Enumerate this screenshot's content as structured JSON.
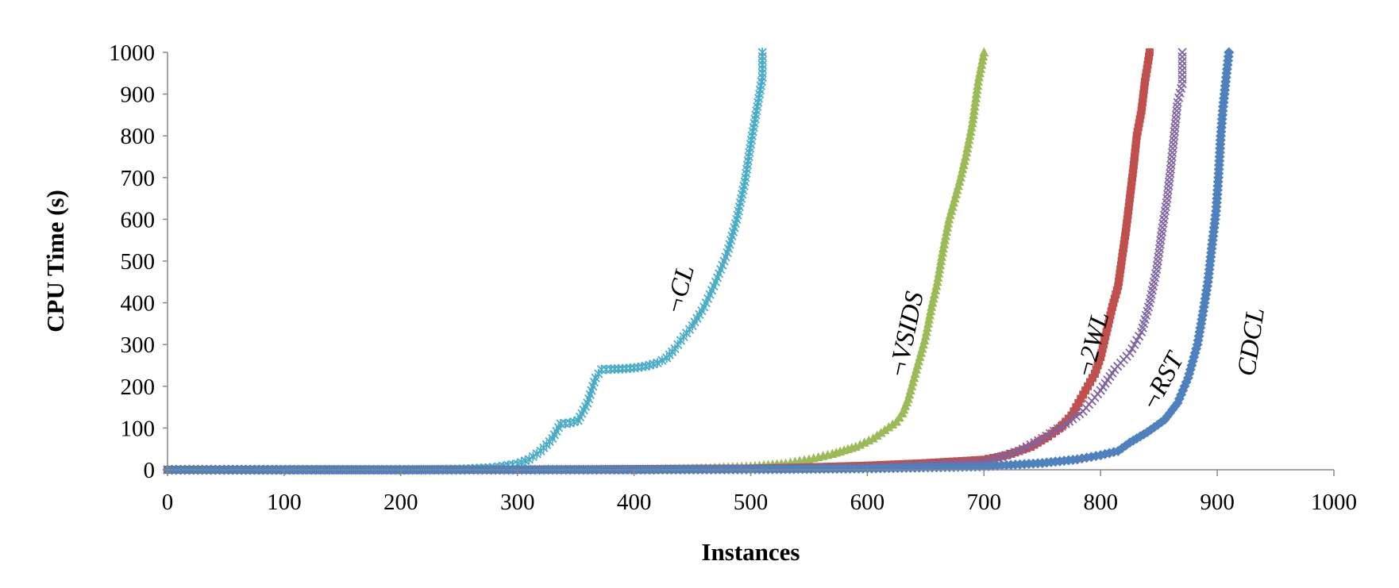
{
  "chart_data": {
    "type": "scatter",
    "title": "",
    "xlabel": "Instances",
    "ylabel": "CPU Time (s)",
    "xlim": [
      0,
      1000
    ],
    "ylim": [
      0,
      1000
    ],
    "x_ticks": [
      "0",
      "100",
      "200",
      "300",
      "400",
      "500",
      "600",
      "700",
      "800",
      "900",
      "1000"
    ],
    "y_ticks": [
      "0",
      "100",
      "200",
      "300",
      "400",
      "500",
      "600",
      "700",
      "800",
      "900",
      "1000"
    ],
    "grid": false,
    "legend": "none",
    "series": [
      {
        "name": "¬CL",
        "color": "#4BACC6",
        "marker": "star",
        "points": [
          [
            0,
            0
          ],
          [
            100,
            0
          ],
          [
            200,
            0
          ],
          [
            250,
            1
          ],
          [
            280,
            5
          ],
          [
            300,
            14
          ],
          [
            310,
            25
          ],
          [
            320,
            45
          ],
          [
            330,
            75
          ],
          [
            337,
            110
          ],
          [
            345,
            112
          ],
          [
            352,
            118
          ],
          [
            360,
            160
          ],
          [
            367,
            220
          ],
          [
            372,
            240
          ],
          [
            380,
            241
          ],
          [
            390,
            242
          ],
          [
            400,
            244
          ],
          [
            410,
            248
          ],
          [
            420,
            256
          ],
          [
            428,
            268
          ],
          [
            435,
            290
          ],
          [
            440,
            310
          ],
          [
            450,
            345
          ],
          [
            460,
            390
          ],
          [
            470,
            450
          ],
          [
            480,
            520
          ],
          [
            488,
            600
          ],
          [
            495,
            690
          ],
          [
            500,
            780
          ],
          [
            505,
            860
          ],
          [
            510,
            940
          ],
          [
            510,
            1000
          ]
        ]
      },
      {
        "name": "¬VSIDS",
        "color": "#9BBB59",
        "marker": "triangle",
        "points": [
          [
            0,
            0
          ],
          [
            200,
            0
          ],
          [
            400,
            1
          ],
          [
            450,
            3
          ],
          [
            500,
            8
          ],
          [
            530,
            15
          ],
          [
            550,
            25
          ],
          [
            570,
            38
          ],
          [
            590,
            55
          ],
          [
            605,
            75
          ],
          [
            615,
            95
          ],
          [
            625,
            115
          ],
          [
            630,
            135
          ],
          [
            635,
            170
          ],
          [
            640,
            220
          ],
          [
            645,
            270
          ],
          [
            650,
            320
          ],
          [
            655,
            390
          ],
          [
            660,
            450
          ],
          [
            665,
            530
          ],
          [
            670,
            600
          ],
          [
            675,
            650
          ],
          [
            680,
            700
          ],
          [
            685,
            760
          ],
          [
            690,
            830
          ],
          [
            695,
            930
          ],
          [
            700,
            1000
          ]
        ]
      },
      {
        "name": "¬2WL",
        "color": "#C0504D",
        "marker": "square",
        "points": [
          [
            0,
            0
          ],
          [
            300,
            0
          ],
          [
            500,
            3
          ],
          [
            550,
            6
          ],
          [
            600,
            10
          ],
          [
            650,
            16
          ],
          [
            700,
            24
          ],
          [
            720,
            35
          ],
          [
            740,
            55
          ],
          [
            755,
            80
          ],
          [
            765,
            100
          ],
          [
            775,
            130
          ],
          [
            785,
            180
          ],
          [
            795,
            230
          ],
          [
            800,
            270
          ],
          [
            805,
            330
          ],
          [
            810,
            390
          ],
          [
            815,
            440
          ],
          [
            818,
            500
          ],
          [
            822,
            580
          ],
          [
            825,
            650
          ],
          [
            828,
            720
          ],
          [
            831,
            800
          ],
          [
            835,
            860
          ],
          [
            838,
            930
          ],
          [
            842,
            1000
          ]
        ]
      },
      {
        "name": "¬RST",
        "color": "#8064A2",
        "marker": "x",
        "points": [
          [
            0,
            0
          ],
          [
            400,
            0
          ],
          [
            600,
            4
          ],
          [
            700,
            18
          ],
          [
            730,
            45
          ],
          [
            750,
            75
          ],
          [
            770,
            110
          ],
          [
            785,
            140
          ],
          [
            800,
            190
          ],
          [
            812,
            240
          ],
          [
            825,
            280
          ],
          [
            835,
            330
          ],
          [
            842,
            400
          ],
          [
            848,
            480
          ],
          [
            853,
            580
          ],
          [
            857,
            650
          ],
          [
            860,
            720
          ],
          [
            863,
            800
          ],
          [
            866,
            880
          ],
          [
            870,
            925
          ],
          [
            870,
            1000
          ]
        ]
      },
      {
        "name": "CDCL",
        "color": "#4F81BD",
        "marker": "diamond",
        "points": [
          [
            0,
            0
          ],
          [
            300,
            0
          ],
          [
            500,
            1
          ],
          [
            600,
            3
          ],
          [
            700,
            8
          ],
          [
            750,
            16
          ],
          [
            780,
            25
          ],
          [
            800,
            35
          ],
          [
            815,
            45
          ],
          [
            825,
            65
          ],
          [
            840,
            90
          ],
          [
            855,
            120
          ],
          [
            866,
            160
          ],
          [
            875,
            220
          ],
          [
            883,
            300
          ],
          [
            888,
            380
          ],
          [
            892,
            450
          ],
          [
            896,
            550
          ],
          [
            899,
            620
          ],
          [
            901,
            700
          ],
          [
            903,
            800
          ],
          [
            905,
            870
          ],
          [
            908,
            950
          ],
          [
            910,
            1000
          ]
        ]
      }
    ],
    "annotations": [
      {
        "text": "¬CL",
        "series": "¬CL"
      },
      {
        "text": "¬VSIDS",
        "series": "¬VSIDS"
      },
      {
        "text": "¬2WL",
        "series": "¬2WL"
      },
      {
        "text": "¬RST",
        "series": "¬RST"
      },
      {
        "text": "CDCL",
        "series": "CDCL"
      }
    ]
  }
}
